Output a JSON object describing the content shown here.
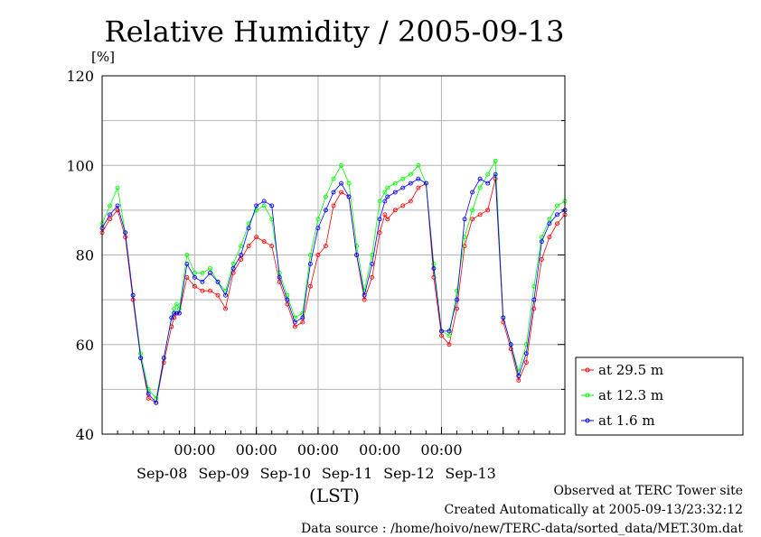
{
  "chart_data": {
    "type": "line",
    "title": "Relative Humidity / 2005-09-13",
    "ylabel": "[%]",
    "xlabel": "(LST)",
    "ylim": [
      40,
      120
    ],
    "y_ticks": [
      "40",
      "60",
      "80",
      "100",
      "120"
    ],
    "x_time_ticks": [
      "00:00",
      "00:00",
      "00:00",
      "00:00",
      "00:00"
    ],
    "x_date_labels": [
      "Sep-08",
      "Sep-09",
      "Sep-10",
      "Sep-11",
      "Sep-12",
      "Sep-13"
    ],
    "xlim_hours": [
      -36,
      144
    ],
    "grid": true,
    "legend_position": "right",
    "series": [
      {
        "name": "at 29.5 m",
        "color": "#ff0000",
        "x_hours": [
          -36,
          -33,
          -30,
          -27,
          -24,
          -21,
          -18,
          -15,
          -12,
          -9,
          -8,
          -7,
          -6,
          -3,
          0,
          3,
          6,
          9,
          12,
          15,
          18,
          21,
          24,
          27,
          30,
          33,
          36,
          39,
          42,
          45,
          48,
          51,
          54,
          57,
          60,
          63,
          66,
          69,
          72,
          74,
          75,
          78,
          81,
          84,
          87,
          90,
          93,
          96,
          99,
          102,
          105,
          108,
          111,
          114,
          117,
          120,
          123,
          126,
          129,
          132,
          135,
          138,
          141,
          144
        ],
        "values": [
          85,
          88,
          90,
          84,
          70,
          57,
          48,
          47,
          56,
          64,
          66,
          67,
          67,
          75,
          73,
          72,
          72,
          71,
          68,
          76,
          79,
          82,
          84,
          83,
          82,
          74,
          69,
          64,
          65,
          73,
          80,
          82,
          91,
          94,
          93,
          80,
          70,
          75,
          85,
          89,
          88,
          90,
          91,
          92,
          95,
          96,
          75,
          62,
          60,
          68,
          82,
          88,
          89,
          90,
          97,
          65,
          59,
          52,
          56,
          68,
          79,
          84,
          87,
          89
        ]
      },
      {
        "name": "at 12.3 m",
        "color": "#00ff00",
        "x_hours": [
          -36,
          -33,
          -30,
          -27,
          -24,
          -21,
          -18,
          -15,
          -12,
          -9,
          -8,
          -7,
          -6,
          -3,
          0,
          3,
          6,
          9,
          12,
          15,
          18,
          21,
          24,
          27,
          30,
          33,
          36,
          39,
          42,
          45,
          48,
          51,
          54,
          57,
          60,
          63,
          66,
          69,
          72,
          74,
          75,
          78,
          81,
          84,
          87,
          90,
          93,
          96,
          99,
          102,
          105,
          108,
          111,
          114,
          117,
          120,
          123,
          126,
          129,
          132,
          135,
          138,
          141,
          144
        ],
        "values": [
          87,
          91,
          95,
          85,
          71,
          58,
          50,
          48,
          57,
          66,
          68,
          69,
          68,
          80,
          76,
          76,
          77,
          74,
          72,
          78,
          82,
          87,
          90,
          91,
          88,
          76,
          71,
          66,
          67,
          80,
          88,
          93,
          97,
          100,
          96,
          82,
          72,
          80,
          92,
          94,
          95,
          96,
          97,
          98,
          100,
          96,
          78,
          63,
          62,
          72,
          84,
          90,
          95,
          98,
          101,
          66,
          60,
          54,
          60,
          73,
          84,
          88,
          91,
          92
        ]
      },
      {
        "name": "at 1.6 m",
        "color": "#0000ff",
        "x_hours": [
          -36,
          -33,
          -30,
          -27,
          -24,
          -21,
          -18,
          -15,
          -12,
          -9,
          -8,
          -7,
          -6,
          -3,
          0,
          3,
          6,
          9,
          12,
          15,
          18,
          21,
          24,
          27,
          30,
          33,
          36,
          39,
          42,
          45,
          48,
          51,
          54,
          57,
          60,
          63,
          66,
          69,
          72,
          74,
          75,
          78,
          81,
          84,
          87,
          90,
          93,
          96,
          99,
          102,
          105,
          108,
          111,
          114,
          117,
          120,
          123,
          126,
          129,
          132,
          135,
          138,
          141,
          144
        ],
        "values": [
          86,
          89,
          91,
          85,
          71,
          57,
          49,
          47,
          57,
          66,
          67,
          67,
          67,
          78,
          75,
          74,
          76,
          74,
          71,
          77,
          80,
          86,
          91,
          92,
          91,
          75,
          70,
          65,
          66,
          78,
          86,
          90,
          94,
          96,
          93,
          80,
          71,
          78,
          88,
          92,
          93,
          94,
          95,
          96,
          97,
          96,
          77,
          63,
          63,
          70,
          88,
          94,
          97,
          96,
          98,
          66,
          60,
          53,
          58,
          70,
          83,
          87,
          89,
          90
        ]
      }
    ]
  },
  "footer": {
    "line1": "Observed at TERC Tower site",
    "line2": "Created Automatically at 2005-09-13/23:32:12",
    "line3": "Data source : /home/hoivo/new/TERC-data/sorted_data/MET.30m.dat"
  }
}
